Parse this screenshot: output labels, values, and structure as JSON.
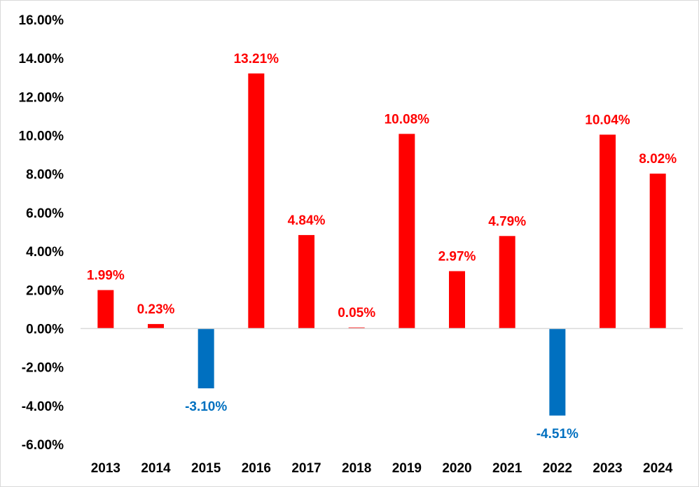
{
  "chart_data": {
    "type": "bar",
    "title": "",
    "xlabel": "",
    "ylabel": "",
    "categories": [
      "2013",
      "2014",
      "2015",
      "2016",
      "2017",
      "2018",
      "2019",
      "2020",
      "2021",
      "2022",
      "2023",
      "2024"
    ],
    "values": [
      1.99,
      0.23,
      -3.1,
      13.21,
      4.84,
      0.05,
      10.08,
      2.97,
      4.79,
      -4.51,
      10.04,
      8.02
    ],
    "data_labels": [
      "1.99%",
      "0.23%",
      "-3.10%",
      "13.21%",
      "4.84%",
      "0.05%",
      "10.08%",
      "2.97%",
      "4.79%",
      "-4.51%",
      "10.04%",
      "8.02%"
    ],
    "ylim": [
      -6,
      16
    ],
    "yticks": [
      16,
      14,
      12,
      10,
      8,
      6,
      4,
      2,
      0,
      -2,
      -4,
      -6
    ],
    "ytick_labels": [
      "16.00%",
      "14.00%",
      "12.00%",
      "10.00%",
      "8.00%",
      "6.00%",
      "4.00%",
      "2.00%",
      "0.00%",
      "-2.00%",
      "-4.00%",
      "-6.00%"
    ],
    "grid": false,
    "legend": "none",
    "colors": {
      "positive": "#ff0000",
      "negative": "#0070c0",
      "axis": "#d9d9d9"
    }
  }
}
